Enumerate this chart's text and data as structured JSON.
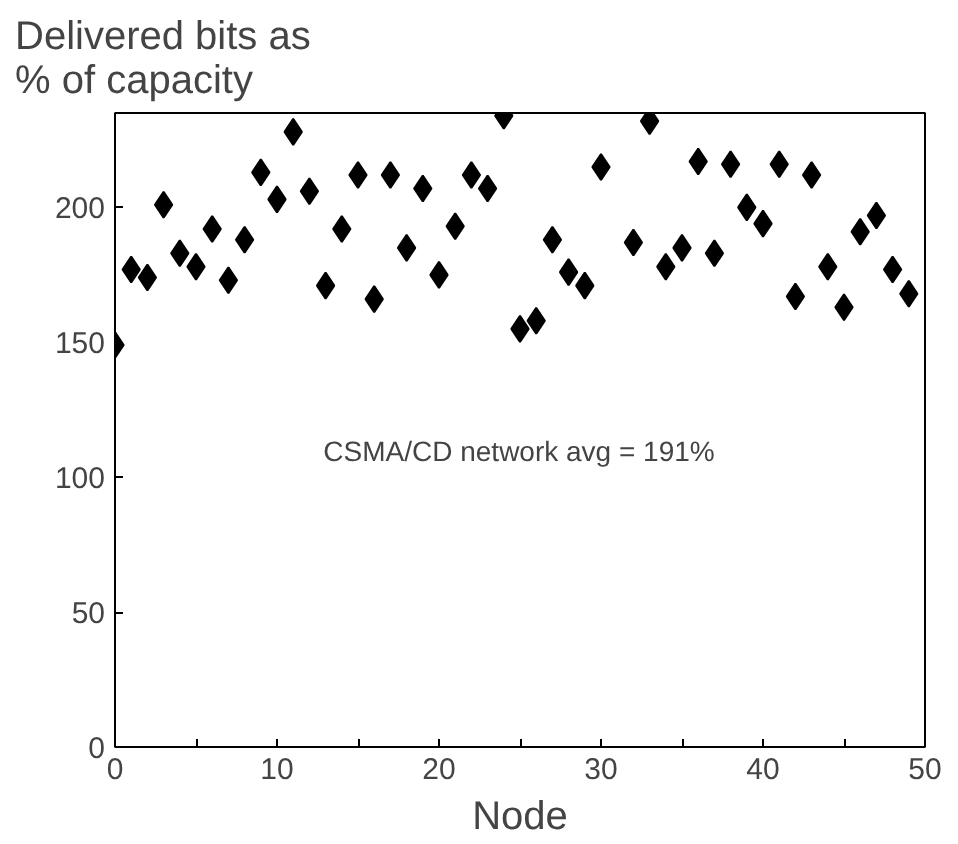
{
  "chart_data": {
    "type": "scatter",
    "ylabel": "Delivered bits as\n% of capacity",
    "xlabel": "Node",
    "annotations": [
      "CSMA/CD network avg = 191%"
    ],
    "x": [
      0,
      1,
      2,
      3,
      4,
      5,
      6,
      7,
      8,
      9,
      10,
      11,
      12,
      13,
      14,
      15,
      16,
      17,
      18,
      19,
      20,
      21,
      22,
      23,
      24,
      25,
      26,
      27,
      28,
      29,
      30,
      32,
      33,
      34,
      35,
      36,
      37,
      38,
      39,
      40,
      41,
      42,
      43,
      44,
      45,
      46,
      47,
      48,
      49
    ],
    "series": [
      {
        "color": "#000000",
        "values": [
          149,
          177,
          174,
          201,
          183,
          178,
          192,
          173,
          188,
          213,
          203,
          228,
          206,
          171,
          192,
          212,
          166,
          212,
          185,
          207,
          175,
          193,
          212,
          207,
          234,
          155,
          158,
          188,
          176,
          171,
          215,
          187,
          232,
          178,
          185,
          217,
          183,
          216,
          200,
          194,
          216,
          167,
          212,
          178,
          163,
          191,
          197,
          177,
          168
        ]
      }
    ],
    "xlim": [
      0,
      50
    ],
    "ylim": [
      0,
      235
    ],
    "xticks": [
      0,
      {
        "value": 5,
        "label": null
      },
      10,
      {
        "value": 15,
        "label": null
      },
      20,
      {
        "value": 25,
        "label": null
      },
      30,
      {
        "value": 35,
        "label": null
      },
      40,
      {
        "value": 45,
        "label": null
      },
      50
    ],
    "yticks": [
      0,
      50,
      100,
      150,
      200
    ],
    "grid": false,
    "marker": "diamond"
  }
}
